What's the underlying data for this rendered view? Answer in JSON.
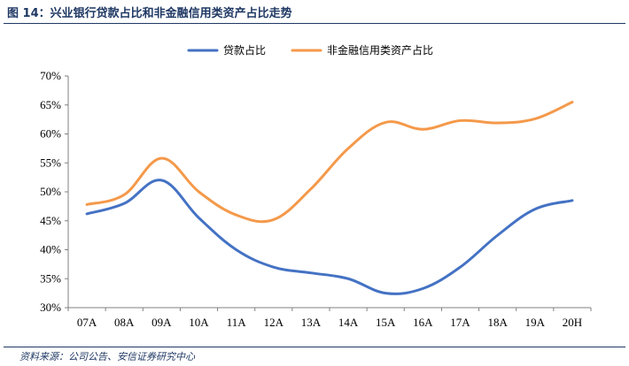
{
  "figure": {
    "title": "图 14：兴业银行贷款占比和非金融信用类资产占比走势",
    "source": "资料来源：公司公告、安信证券研究中心"
  },
  "chart_data": {
    "type": "line",
    "categories": [
      "07A",
      "08A",
      "09A",
      "10A",
      "11A",
      "12A",
      "13A",
      "14A",
      "15A",
      "16A",
      "17A",
      "18A",
      "19A",
      "20H"
    ],
    "series": [
      {
        "name": "贷款占比",
        "color": "#4472c4",
        "values": [
          46.2,
          48.0,
          52.0,
          45.5,
          40.0,
          37.0,
          36.0,
          35.0,
          32.5,
          33.3,
          37.0,
          42.5,
          47.0,
          48.5
        ]
      },
      {
        "name": "非金融信用类资产占比",
        "color": "#f4994a",
        "values": [
          47.8,
          49.5,
          55.8,
          50.0,
          46.0,
          45.2,
          50.5,
          57.5,
          62.0,
          60.8,
          62.3,
          61.9,
          62.6,
          65.5
        ]
      }
    ],
    "y_ticks": [
      "30%",
      "35%",
      "40%",
      "45%",
      "50%",
      "55%",
      "60%",
      "65%",
      "70%"
    ],
    "ylim": [
      30,
      70
    ],
    "legend_position": "top",
    "grid": false
  }
}
